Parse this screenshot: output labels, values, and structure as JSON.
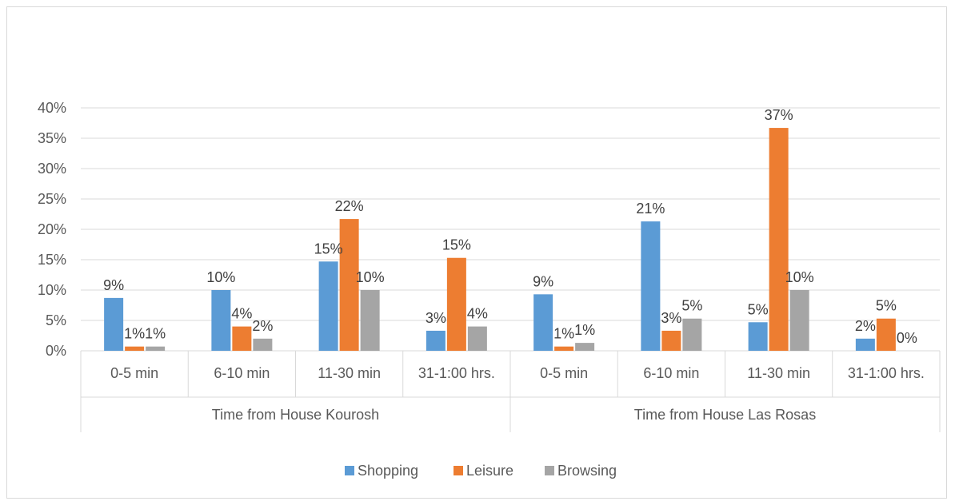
{
  "chart_data": {
    "type": "bar",
    "title": "",
    "xlabel": "",
    "ylabel": "",
    "ylim": [
      0,
      0.4
    ],
    "yticks": [
      0,
      0.05,
      0.1,
      0.15,
      0.2,
      0.25,
      0.3,
      0.35,
      0.4
    ],
    "ytick_labels": [
      "0%",
      "5%",
      "10%",
      "15%",
      "20%",
      "25%",
      "30%",
      "35%",
      "40%"
    ],
    "grid": true,
    "legend_position": "bottom",
    "groups": [
      {
        "label": "Time from House Kourosh",
        "categories": [
          "0-5 min",
          "6-10 min",
          "11-30 min",
          "31-1:00 hrs."
        ]
      },
      {
        "label": "Time from House Las Rosas",
        "categories": [
          "0-5 min",
          "6-10 min",
          "11-30 min",
          "31-1:00 hrs."
        ]
      }
    ],
    "categories": [
      "0-5 min",
      "6-10 min",
      "11-30 min",
      "31-1:00 hrs.",
      "0-5 min",
      "6-10 min",
      "11-30 min",
      "31-1:00 hrs."
    ],
    "series": [
      {
        "name": "Shopping",
        "color": "#5b9bd5",
        "values": [
          0.087,
          0.1,
          0.147,
          0.033,
          0.093,
          0.213,
          0.047,
          0.02
        ],
        "labels": [
          "9%",
          "10%",
          "15%",
          "3%",
          "9%",
          "21%",
          "5%",
          "2%"
        ]
      },
      {
        "name": "Leisure",
        "color": "#ed7d31",
        "values": [
          0.007,
          0.04,
          0.217,
          0.153,
          0.007,
          0.033,
          0.367,
          0.053
        ],
        "labels": [
          "1%",
          "4%",
          "22%",
          "15%",
          "1%",
          "3%",
          "37%",
          "5%"
        ]
      },
      {
        "name": "Browsing",
        "color": "#a5a5a5",
        "values": [
          0.007,
          0.02,
          0.1,
          0.04,
          0.013,
          0.053,
          0.1,
          0.0
        ],
        "labels": [
          "1%",
          "2%",
          "10%",
          "4%",
          "1%",
          "5%",
          "10%",
          "0%"
        ]
      }
    ]
  }
}
